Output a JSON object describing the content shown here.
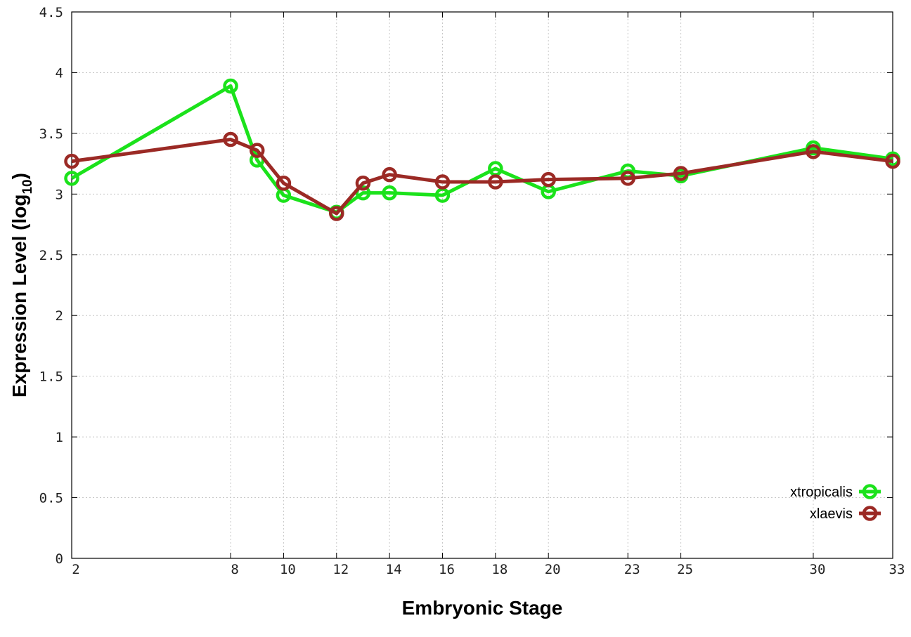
{
  "chart_data": {
    "type": "line",
    "xlabel": "Embryonic Stage",
    "ylabel": {
      "main": "Expression Level (log",
      "sub": "10",
      "close": ")"
    },
    "x": [
      2,
      8,
      9,
      10,
      12,
      13,
      14,
      16,
      18,
      20,
      23,
      25,
      30,
      33
    ],
    "x_ticks": [
      2,
      8,
      10,
      12,
      14,
      16,
      18,
      20,
      23,
      25,
      30,
      33
    ],
    "y_ticks": [
      "0",
      "0.5",
      "1",
      "1.5",
      "2",
      "2.5",
      "3",
      "3.5",
      "4",
      "4.5"
    ],
    "xlim": [
      2,
      33
    ],
    "ylim": [
      0,
      4.5
    ],
    "grid": true,
    "legend_position": "bottom-right",
    "series": [
      {
        "name": "xtropicalis",
        "color": "#1be21b",
        "values": [
          3.13,
          3.89,
          3.28,
          2.99,
          2.85,
          3.01,
          3.01,
          2.99,
          3.21,
          3.02,
          3.19,
          3.15,
          3.38,
          3.29
        ]
      },
      {
        "name": "xlaevis",
        "color": "#9b2a25",
        "values": [
          3.27,
          3.45,
          3.36,
          3.09,
          2.84,
          3.09,
          3.16,
          3.1,
          3.1,
          3.12,
          3.13,
          3.17,
          3.35,
          3.27
        ]
      }
    ]
  }
}
